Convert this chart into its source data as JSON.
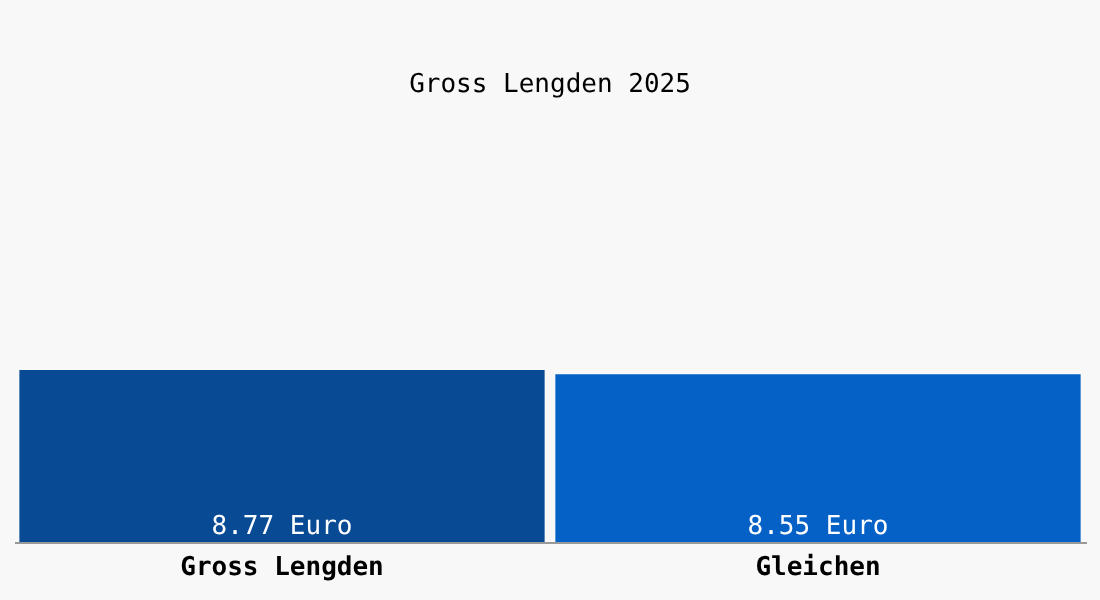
{
  "chart_data": {
    "type": "bar",
    "title": "Gross Lengden 2025",
    "categories": [
      "Gross Lengden",
      "Gleichen"
    ],
    "values": [
      8.77,
      8.55
    ],
    "colors": [
      "#084a94",
      "#0561c6"
    ],
    "value_labels": [
      "8.77 Euro",
      "8.55 Euro"
    ],
    "grid": false,
    "legend": false
  }
}
